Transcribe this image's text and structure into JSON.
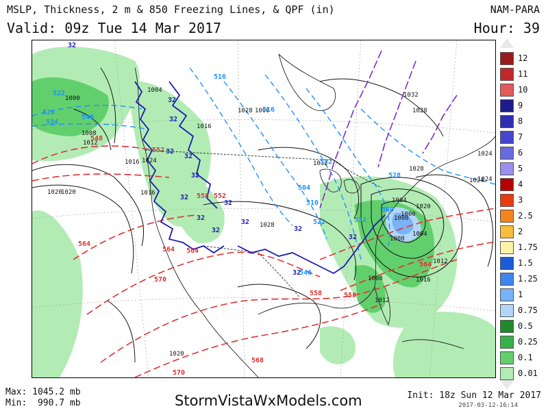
{
  "header": {
    "title": "MSLP, Thickness, 2 m & 850 Freezing Lines, & QPF (in)",
    "valid": "Valid: 09z Tue 14 Mar 2017",
    "model": "NAM-PARA",
    "hour": "Hour: 39"
  },
  "footer": {
    "max": "Max: 1045.2 mb",
    "min": "Min:  990.7 mb",
    "site": "StormVistaWxModels.com",
    "init": "Init: 18z Sun 12 Mar 2017",
    "stamp": "2017-03-12-16:14"
  },
  "legend": [
    {
      "label": "12",
      "color": "#9b1a1a"
    },
    {
      "label": "11",
      "color": "#c2282a"
    },
    {
      "label": "10",
      "color": "#e25a5a"
    },
    {
      "label": "9",
      "color": "#1c1c8c"
    },
    {
      "label": "8",
      "color": "#2f2fb4"
    },
    {
      "label": "7",
      "color": "#4646cc"
    },
    {
      "label": "6",
      "color": "#6a6adf"
    },
    {
      "label": "5",
      "color": "#9a8ff0"
    },
    {
      "label": "4",
      "color": "#b40000"
    },
    {
      "label": "3",
      "color": "#e83c0c"
    },
    {
      "label": "2.5",
      "color": "#f5841c"
    },
    {
      "label": "2",
      "color": "#f8bd3a"
    },
    {
      "label": "1.75",
      "color": "#fbf3a6"
    },
    {
      "label": "1.5",
      "color": "#1c5ad8"
    },
    {
      "label": "1.25",
      "color": "#3e86ee"
    },
    {
      "label": "1",
      "color": "#79b2f6"
    },
    {
      "label": "0.75",
      "color": "#b2d6fa"
    },
    {
      "label": "0.5",
      "color": "#1f8a2c"
    },
    {
      "label": "0.25",
      "color": "#35b14a"
    },
    {
      "label": "0.1",
      "color": "#62cf6d"
    },
    {
      "label": "0.01",
      "color": "#b2ecb4"
    }
  ],
  "map": {
    "colors": {
      "light_green": "#b2ecb4",
      "green": "#62cf6d",
      "mid_green": "#35b14a",
      "light_blue": "#b2d6fa",
      "blue": "#79b2f6",
      "thickness_line": "#e03030",
      "freezing_line_850": "#1a1ab0",
      "freezing_line_2m": "#7b2bd0",
      "thickness_cold_line": "#1e90ff",
      "isobar": "#111111"
    },
    "isobar_labels": [
      "1004",
      "1000",
      "1008",
      "1012",
      "1016",
      "1020",
      "1024",
      "1028",
      "1032",
      "1000",
      "1004",
      "1008",
      "1012",
      "1016",
      "1020",
      "1024",
      "1028",
      "1016",
      "1020",
      "1024",
      "1008",
      "1032",
      "1028",
      "1024",
      "1028",
      "1004",
      "1000",
      "1012",
      "1016",
      "1020",
      "1008"
    ],
    "thickness_labels": [
      "548",
      "552",
      "564",
      "570",
      "570",
      "564",
      "558",
      "564",
      "558",
      "552",
      "558",
      "564",
      "568"
    ],
    "thickness_cold_labels": [
      "528",
      "534",
      "540",
      "522",
      "516",
      "516",
      "522",
      "504",
      "510",
      "522",
      "528",
      "532",
      "540",
      "546"
    ],
    "freezing_labels": [
      "32",
      "32",
      "32",
      "32",
      "32",
      "32",
      "32",
      "32",
      "32",
      "32",
      "32",
      "32",
      "32",
      "32"
    ]
  }
}
